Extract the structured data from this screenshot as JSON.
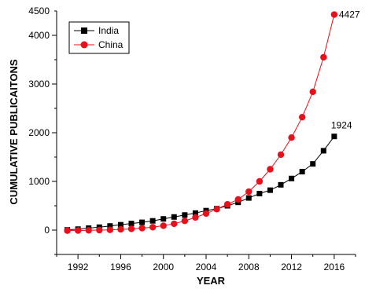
{
  "chart_data": {
    "type": "line",
    "title": "",
    "xlabel": "YEAR",
    "ylabel": "CUMULATIVE PUBLICAITONS",
    "x": [
      1991,
      1992,
      1993,
      1994,
      1995,
      1996,
      1997,
      1998,
      1999,
      2000,
      2001,
      2002,
      2003,
      2004,
      2005,
      2006,
      2007,
      2008,
      2009,
      2010,
      2011,
      2012,
      2013,
      2014,
      2015,
      2016
    ],
    "xlim": [
      1990,
      2018
    ],
    "ylim": [
      -500,
      4500
    ],
    "xticks": [
      "1992",
      "1996",
      "2000",
      "2004",
      "2008",
      "2012",
      "2016"
    ],
    "yticks": [
      "0",
      "1000",
      "2000",
      "3000",
      "4000",
      "4500"
    ],
    "legend_position": "top-left",
    "grid": false,
    "series": [
      {
        "name": "India",
        "color": "#000000",
        "marker": "square",
        "values": [
          5,
          20,
          40,
          60,
          85,
          110,
          135,
          160,
          190,
          230,
          270,
          310,
          350,
          400,
          440,
          500,
          570,
          660,
          750,
          820,
          930,
          1060,
          1200,
          1360,
          1630,
          1924
        ],
        "end_label": "1924"
      },
      {
        "name": "China",
        "color": "#e8101a",
        "marker": "circle",
        "values": [
          -10,
          -8,
          -5,
          0,
          5,
          15,
          25,
          40,
          60,
          90,
          130,
          190,
          260,
          340,
          430,
          530,
          630,
          790,
          1000,
          1250,
          1550,
          1900,
          2320,
          2840,
          3550,
          4427
        ],
        "end_label": "4427"
      }
    ]
  }
}
